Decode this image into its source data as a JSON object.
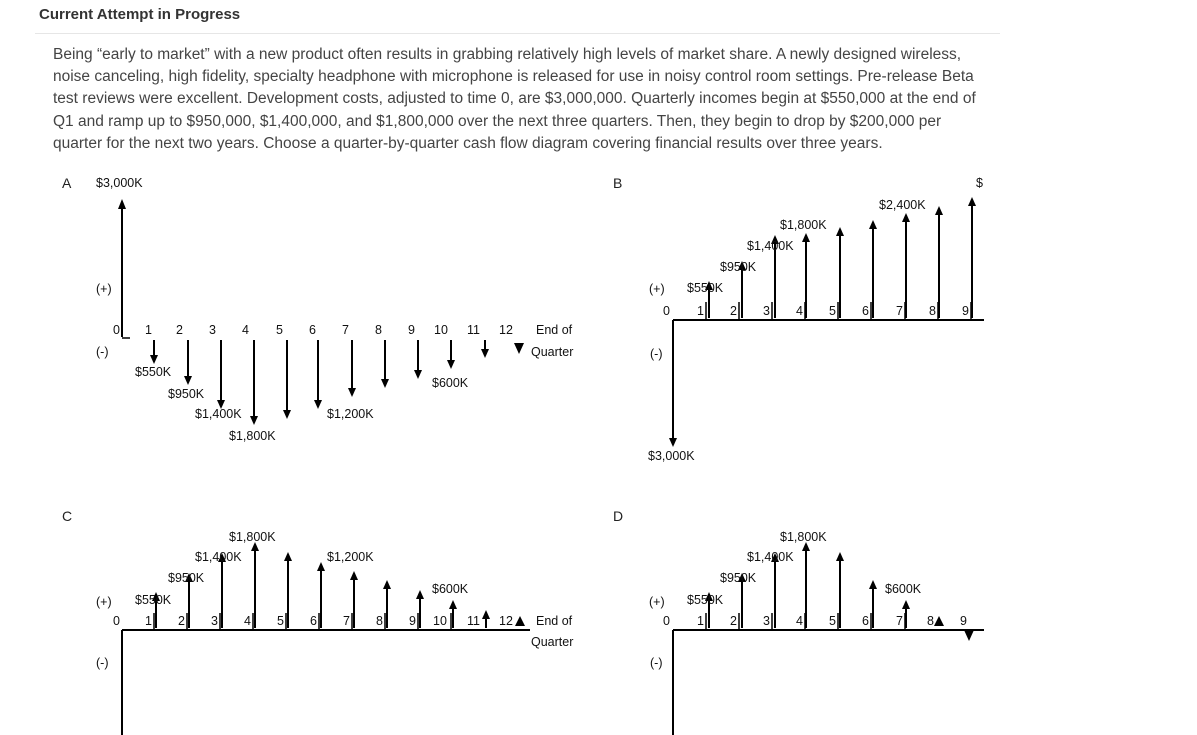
{
  "header": {
    "title": "Current Attempt in Progress"
  },
  "question": {
    "text": "Being “early to market” with a new product often results in grabbing relatively high levels of market share. A newly designed wireless, noise canceling, high fidelity, specialty headphone with microphone is released for use in noisy control room settings. Pre-release Beta test reviews were excellent. Development costs, adjusted to time 0, are $3,000,000. Quarterly incomes begin at $550,000 at the end of Q1 and ramp up to $950,000, $1,400,000, and $1,800,000 over the next three quarters. Then, they begin to drop by $200,000 per quarter for the next two years. Choose a quarter-by-quarter cash flow diagram covering financial results over three years."
  },
  "options": {
    "A": {
      "letter": "A",
      "plus": "(+)",
      "minus": "(-)",
      "ticks": [
        "0",
        "1",
        "2",
        "3",
        "4",
        "5",
        "6",
        "7",
        "8",
        "9",
        "10",
        "11",
        "12"
      ],
      "axis_title_1": "End of",
      "axis_title_2": "Quarter",
      "labels": {
        "l3000": "$3,000K",
        "l550": "$550K",
        "l950": "$950K",
        "l1400": "$1,400K",
        "l1800": "$1,800K",
        "l1200": "$1,200K",
        "l600": "$600K"
      }
    },
    "B": {
      "letter": "B",
      "plus": "(+)",
      "minus": "(-)",
      "ticks": [
        "0",
        "1",
        "2",
        "3",
        "4",
        "5",
        "6",
        "7",
        "8",
        "9"
      ],
      "labels": {
        "l550": "$550K",
        "l950": "$950K",
        "l1400": "$1,400K",
        "l1800": "$1,800K",
        "l2400": "$2,400K",
        "l3000": "$3,000K",
        "cut": "$"
      }
    },
    "C": {
      "letter": "C",
      "plus": "(+)",
      "minus": "(-)",
      "ticks": [
        "0",
        "1",
        "2",
        "3",
        "4",
        "5",
        "6",
        "7",
        "8",
        "9",
        "10",
        "11",
        "12"
      ],
      "axis_title_1": "End of",
      "axis_title_2": "Quarter",
      "labels": {
        "l550": "$550K",
        "l950": "$950K",
        "l1400": "$1,400K",
        "l1800": "$1,800K",
        "l1200": "$1,200K",
        "l600": "$600K"
      }
    },
    "D": {
      "letter": "D",
      "plus": "(+)",
      "minus": "(-)",
      "ticks": [
        "0",
        "1",
        "2",
        "3",
        "4",
        "5",
        "6",
        "7",
        "8",
        "9"
      ],
      "labels": {
        "l550": "$550K",
        "l950": "$950K",
        "l1400": "$1,400K",
        "l1800": "$1,800K",
        "l600": "$600K"
      }
    }
  }
}
